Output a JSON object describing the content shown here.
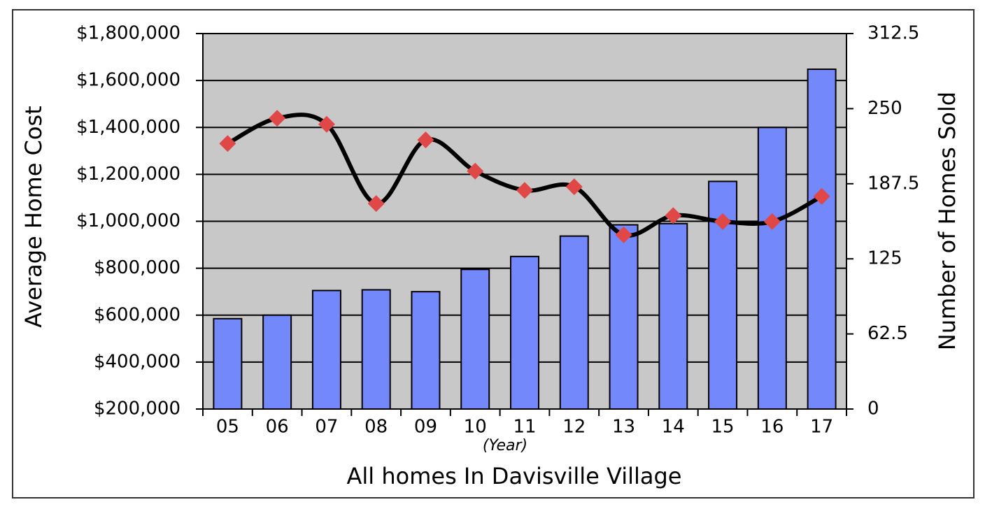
{
  "chart_data": {
    "type": "bar-line",
    "y_label": "Average Home Cost",
    "y2_label": "Number of Homes Sold",
    "x_annotation": "(Year)",
    "x_label": "All homes In Davisville Village",
    "categories": [
      "05",
      "06",
      "07",
      "08",
      "09",
      "10",
      "11",
      "12",
      "13",
      "14",
      "15",
      "16",
      "17"
    ],
    "series": [
      {
        "name": "Average Home Cost",
        "type": "bar",
        "color": "#7388fa",
        "values": [
          585000,
          600000,
          705000,
          708000,
          700000,
          795000,
          850000,
          937000,
          985000,
          990000,
          1170000,
          1400000,
          1648000
        ]
      },
      {
        "name": "Number of Homes Sold",
        "type": "line",
        "axis": "y2",
        "color": "#000000",
        "marker_color": "#e04848",
        "smooth": true,
        "values": [
          221,
          242,
          237,
          171,
          224,
          198,
          182,
          185,
          145,
          161,
          156,
          156,
          177
        ]
      }
    ],
    "ylim": [
      200000,
      1800000
    ],
    "yticks": [
      {
        "value": 200000,
        "label": "$200,000"
      },
      {
        "value": 400000,
        "label": "$400,000"
      },
      {
        "value": 600000,
        "label": "$600,000"
      },
      {
        "value": 800000,
        "label": "$800,000"
      },
      {
        "value": 1000000,
        "label": "$1,000,000"
      },
      {
        "value": 1200000,
        "label": "$1,200,000"
      },
      {
        "value": 1400000,
        "label": "$1,400,000"
      },
      {
        "value": 1600000,
        "label": "$1,600,000"
      },
      {
        "value": 1800000,
        "label": "$1,800,000"
      }
    ],
    "y2lim": [
      0,
      312.5
    ],
    "y2ticks": [
      0,
      62.5,
      125,
      187.5,
      250,
      312.5
    ],
    "grid": true,
    "plot_background": "#c8c8c8"
  }
}
